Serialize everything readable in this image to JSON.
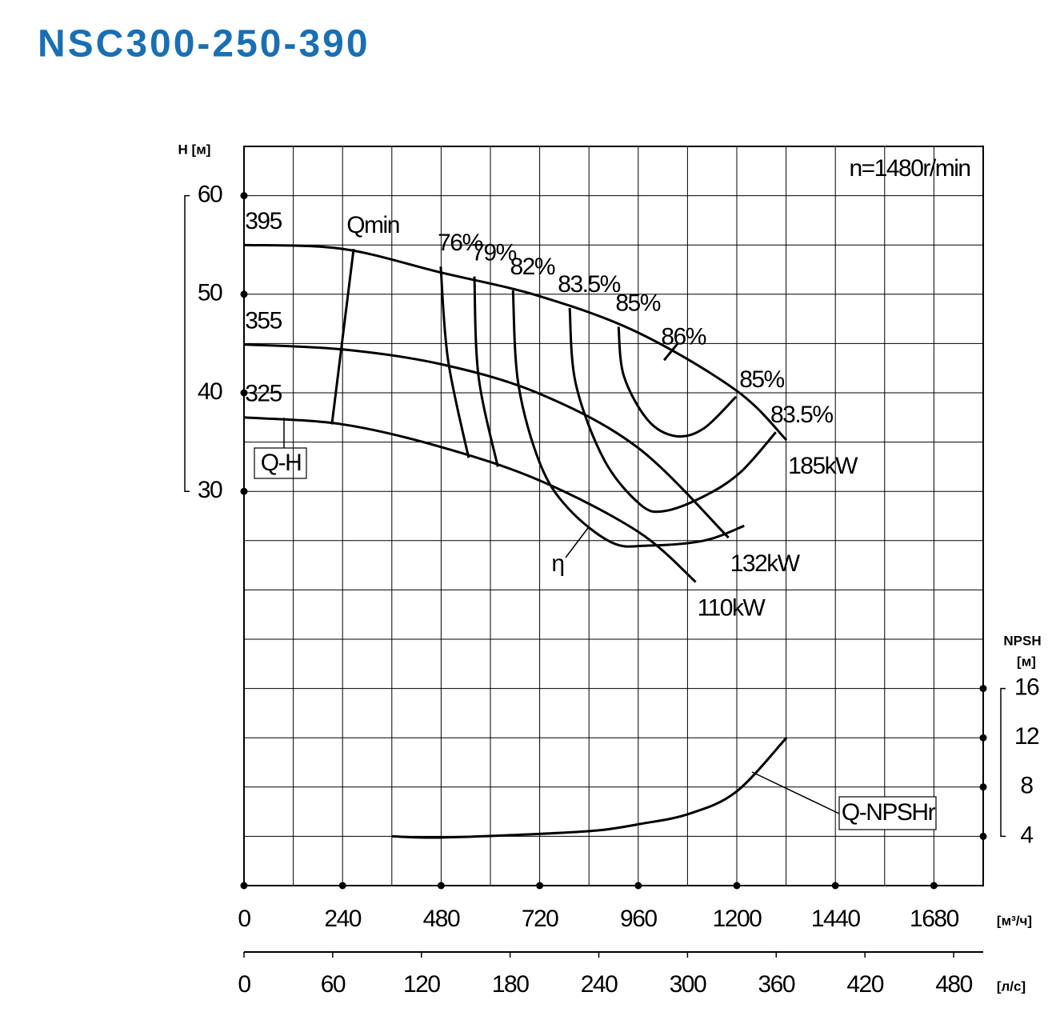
{
  "chart_data": {
    "type": "line",
    "title": "NSC300-250-390",
    "annotation": "n=1480r/min",
    "ylabel": "H [м]",
    "y2label": "NPSH",
    "y2unit": "[м]",
    "xlabel": "[м³/ч]",
    "x2label": "[л/с]",
    "qh_label": "Q-H",
    "eta_label": "η",
    "xlim": [
      0,
      1800
    ],
    "xticks": [
      0,
      240,
      480,
      720,
      960,
      1200,
      1440,
      1680
    ],
    "xgrid": [
      0,
      120,
      240,
      360,
      480,
      600,
      720,
      840,
      960,
      1080,
      1200,
      1320,
      1440,
      1560,
      1680,
      1800
    ],
    "x2lim": [
      0,
      500
    ],
    "x2ticks": [
      0,
      60,
      120,
      180,
      240,
      300,
      360,
      420,
      480
    ],
    "ylim": [
      -10,
      65
    ],
    "yticks": [
      30,
      40,
      50,
      60
    ],
    "ygrid": [
      -10,
      -5,
      0,
      5,
      10,
      15,
      20,
      25,
      30,
      35,
      40,
      45,
      50,
      55,
      60,
      65
    ],
    "y2lim": [
      0,
      60
    ],
    "y2ticks": [
      4,
      8,
      12,
      16
    ],
    "grid": true,
    "series": [
      {
        "name": "395",
        "power": "185kW",
        "color": "#000000",
        "x": [
          0,
          240,
          480,
          720,
          960,
          1200,
          1321
        ],
        "values": [
          55,
          54.6,
          52.2,
          49.8,
          46.1,
          40.2,
          35.2
        ]
      },
      {
        "name": "355",
        "power": "132kW",
        "color": "#000000",
        "x": [
          0,
          240,
          480,
          720,
          960,
          1180
        ],
        "values": [
          44.9,
          44.4,
          42.9,
          39.9,
          34.4,
          25.3
        ]
      },
      {
        "name": "325",
        "power": "110kW",
        "color": "#000000",
        "x": [
          0,
          240,
          480,
          720,
          960,
          1100
        ],
        "values": [
          37.5,
          36.8,
          34.5,
          31.1,
          25.9,
          20.8
        ]
      },
      {
        "name": "Qmin",
        "color": "#000000",
        "x": [
          267,
          214
        ],
        "values": [
          54.6,
          36.8
        ]
      },
      {
        "name": "76%",
        "color": "#000000",
        "x": [
          479,
          497,
          547
        ],
        "values": [
          52.8,
          43.3,
          33.4
        ]
      },
      {
        "name": "79%",
        "color": "#000000",
        "x": [
          561,
          571,
          618
        ],
        "values": [
          51.8,
          41.7,
          32.5
        ]
      },
      {
        "name": "82%",
        "color": "#000000",
        "x": [
          655,
          668,
          721,
          789,
          896,
          984,
          1120,
          1218
        ],
        "values": [
          50.4,
          40.9,
          32.8,
          28.3,
          24.8,
          24.5,
          25.0,
          26.5
        ]
      },
      {
        "name": "83.5%",
        "end_label": true,
        "color": "#000000",
        "x": [
          793,
          808,
          877,
          964,
          1023,
          1120,
          1208,
          1295
        ],
        "values": [
          48.6,
          40.9,
          33.2,
          28.7,
          28.0,
          29.5,
          31.9,
          36.0
        ]
      },
      {
        "name": "85%",
        "end_label": true,
        "color": "#000000",
        "x": [
          912,
          925,
          984,
          1052,
          1120,
          1198
        ],
        "values": [
          46.7,
          41.7,
          37.2,
          35.6,
          36.4,
          39.6
        ]
      },
      {
        "name": "86%",
        "color": "#000000",
        "x": [
          1023,
          1058
        ],
        "values": [
          43.3,
          45.1
        ]
      },
      {
        "name": "Q-NPSHr",
        "axis": "y2",
        "color": "#000000",
        "x": [
          360,
          477,
          719,
          867,
          964,
          1081,
          1198,
          1321
        ],
        "values": [
          4.0,
          3.9,
          4.2,
          4.5,
          5.0,
          5.8,
          7.6,
          12.0
        ]
      }
    ]
  }
}
